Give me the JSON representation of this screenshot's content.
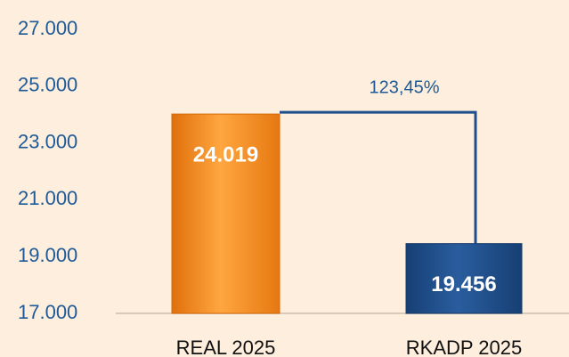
{
  "chart_data": {
    "type": "bar",
    "categories": [
      "REAL 2025",
      "RKADP 2025"
    ],
    "values": [
      24019,
      19456
    ],
    "value_labels": [
      "24.019",
      "19.456"
    ],
    "colors": [
      "#f08a1c",
      "#1f4e8c"
    ],
    "annotation": "123,45%",
    "ylim": [
      17000,
      27000
    ],
    "yticks": [
      {
        "value": 17000,
        "label": "17.000"
      },
      {
        "value": 19000,
        "label": "19.000"
      },
      {
        "value": 21000,
        "label": "21.000"
      },
      {
        "value": 23000,
        "label": "23.000"
      },
      {
        "value": 25000,
        "label": "25.000"
      },
      {
        "value": 27000,
        "label": "27.000"
      }
    ],
    "grid": false
  }
}
